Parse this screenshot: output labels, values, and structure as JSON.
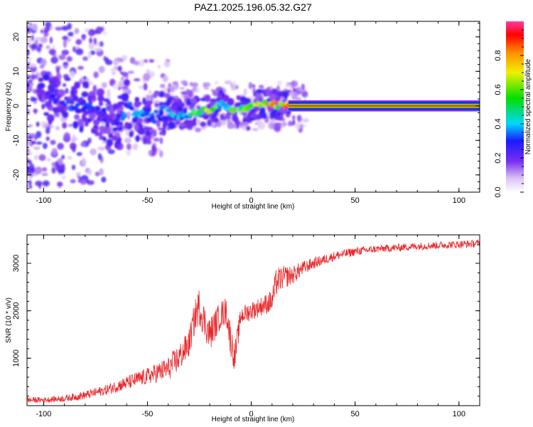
{
  "title": "PAZ1.2025.196.05.32.G27",
  "chart_data": [
    {
      "type": "heatmap",
      "xlabel": "Height of straight line (km)",
      "ylabel": "Frequency (Hz)",
      "xlim": [
        -108,
        110
      ],
      "ylim": [
        -25,
        24.5
      ],
      "xticks": [
        -100,
        -50,
        0,
        50,
        100
      ],
      "yticks": [
        -20,
        -10,
        0,
        10,
        20
      ],
      "colorbar": {
        "label": "Normalized spectral amplitude",
        "range": [
          0,
          1
        ],
        "ticks": [
          0.0,
          0.2,
          0.4,
          0.6,
          0.8
        ],
        "tick_labels": [
          "0.0",
          "0.2",
          "0.4",
          "0.6",
          "0.8"
        ]
      },
      "ridge": [
        {
          "x": -95,
          "y": 2,
          "amp": 0.3
        },
        {
          "x": -88,
          "y": 1,
          "amp": 0.35
        },
        {
          "x": -80,
          "y": 0,
          "amp": 0.35
        },
        {
          "x": -72,
          "y": -2,
          "amp": 0.3
        },
        {
          "x": -65,
          "y": -6,
          "amp": 0.3
        },
        {
          "x": -60,
          "y": 0,
          "amp": 0.4
        },
        {
          "x": -57,
          "y": -2,
          "amp": 0.45
        },
        {
          "x": -53,
          "y": -3,
          "amp": 0.4
        },
        {
          "x": -48,
          "y": -4,
          "amp": 0.4
        },
        {
          "x": -44,
          "y": -2,
          "amp": 0.35
        },
        {
          "x": -38,
          "y": -2,
          "amp": 0.45
        },
        {
          "x": -33,
          "y": -3,
          "amp": 0.5
        },
        {
          "x": -28,
          "y": -2,
          "amp": 0.6
        },
        {
          "x": -23,
          "y": -1.5,
          "amp": 0.75
        },
        {
          "x": -18,
          "y": -1,
          "amp": 0.7
        },
        {
          "x": -14,
          "y": 1,
          "amp": 0.55
        },
        {
          "x": -10,
          "y": -1.5,
          "amp": 0.6
        },
        {
          "x": -5,
          "y": -1,
          "amp": 0.7
        },
        {
          "x": 0,
          "y": -0.5,
          "amp": 0.8
        },
        {
          "x": 5,
          "y": 0.5,
          "amp": 0.85
        },
        {
          "x": 10,
          "y": 0.5,
          "amp": 0.9
        },
        {
          "x": 15,
          "y": 0,
          "amp": 0.95
        },
        {
          "x": 20,
          "y": 0,
          "amp": 1.0
        },
        {
          "x": 110,
          "y": 0,
          "amp": 1.0
        }
      ]
    },
    {
      "type": "line",
      "xlabel": "Height of straight line (km)",
      "ylabel": "SNR (10 * v/v)",
      "xlim": [
        -108,
        110
      ],
      "ylim": [
        0,
        3600
      ],
      "xticks": [
        -100,
        -50,
        0,
        50,
        100
      ],
      "yticks": [
        1000,
        2000,
        3000
      ],
      "series": [
        {
          "color": "#e8262a",
          "x": [
            -108,
            -100,
            -90,
            -80,
            -70,
            -60,
            -50,
            -40,
            -35,
            -30,
            -27,
            -25,
            -22,
            -20,
            -15,
            -12,
            -10,
            -8,
            -5,
            0,
            5,
            10,
            12,
            15,
            20,
            25,
            30,
            40,
            50,
            60,
            70,
            80,
            90,
            100,
            110
          ],
          "y": [
            120,
            120,
            150,
            220,
            330,
            480,
            620,
            780,
            1000,
            1300,
            1900,
            2100,
            1700,
            1500,
            1900,
            2000,
            1400,
            1000,
            1900,
            2000,
            2100,
            2200,
            2600,
            2700,
            2750,
            2900,
            3000,
            3150,
            3250,
            3300,
            3330,
            3360,
            3380,
            3400,
            3420
          ],
          "noise": [
            60,
            60,
            70,
            90,
            110,
            150,
            180,
            250,
            300,
            300,
            350,
            400,
            350,
            350,
            300,
            300,
            350,
            300,
            200,
            200,
            200,
            250,
            300,
            250,
            200,
            150,
            120,
            100,
            90,
            80,
            80,
            80,
            80,
            80,
            80
          ]
        }
      ]
    }
  ]
}
